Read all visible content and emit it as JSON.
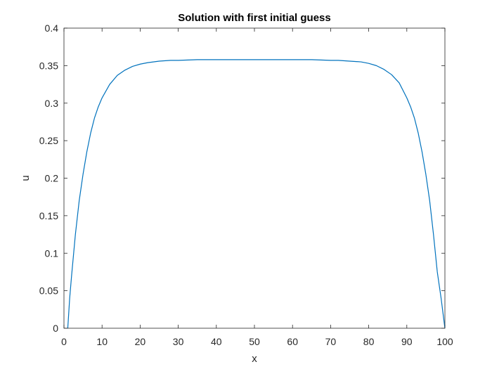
{
  "chart_data": {
    "type": "line",
    "title": "Solution with first initial guess",
    "xlabel": "x",
    "ylabel": "u",
    "xlim": [
      0,
      100
    ],
    "ylim": [
      0,
      0.4
    ],
    "xticks": [
      "0",
      "10",
      "20",
      "30",
      "40",
      "50",
      "60",
      "70",
      "80",
      "90",
      "100"
    ],
    "yticks": [
      "0",
      "0.05",
      "0.1",
      "0.15",
      "0.2",
      "0.25",
      "0.3",
      "0.35",
      "0.4"
    ],
    "grid": false,
    "legend": "none",
    "series": [
      {
        "color": "#0072bd",
        "x": [
          1,
          1.5,
          2,
          3,
          4,
          5,
          6,
          7,
          8,
          9,
          10,
          12,
          14,
          16,
          18,
          20,
          22,
          25,
          28,
          30,
          35,
          40,
          45,
          50,
          55,
          60,
          65,
          70,
          72,
          75,
          78,
          80,
          82,
          84,
          86,
          88,
          90,
          91,
          92,
          93,
          94,
          95,
          96,
          97,
          98,
          99,
          100
        ],
        "y": [
          0,
          0.04,
          0.07,
          0.125,
          0.17,
          0.205,
          0.235,
          0.26,
          0.28,
          0.295,
          0.307,
          0.325,
          0.337,
          0.344,
          0.349,
          0.352,
          0.354,
          0.356,
          0.357,
          0.357,
          0.358,
          0.358,
          0.358,
          0.358,
          0.358,
          0.358,
          0.358,
          0.357,
          0.357,
          0.356,
          0.355,
          0.353,
          0.35,
          0.345,
          0.338,
          0.327,
          0.307,
          0.295,
          0.28,
          0.26,
          0.235,
          0.205,
          0.17,
          0.125,
          0.075,
          0.04,
          0
        ]
      }
    ]
  }
}
